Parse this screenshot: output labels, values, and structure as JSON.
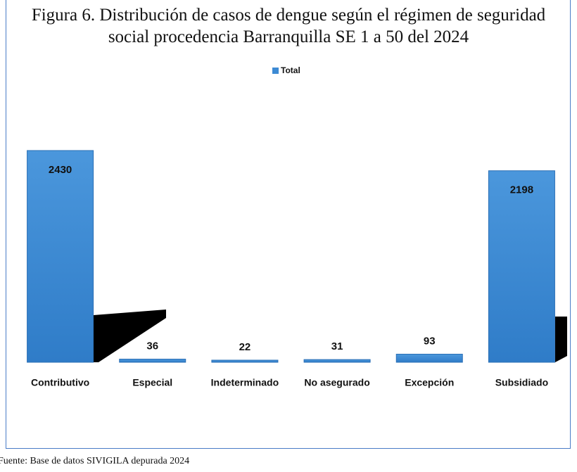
{
  "chart_data": {
    "type": "bar",
    "title": "Figura 6. Distribución de casos de dengue según el régimen de seguridad social procedencia Barranquilla SE 1 a 50 del 2024",
    "legend": "top",
    "series": [
      {
        "name": "Total",
        "color": "#3d8ad4",
        "values": [
          2430,
          36,
          22,
          31,
          93,
          2198
        ]
      }
    ],
    "categories": [
      "Contributivo",
      "Especial",
      "Indeterminado",
      "No asegurado",
      "Excepción",
      "Subsidiado"
    ],
    "source": "Fuente: Base de datos SIVIGILA depurada 2024"
  }
}
